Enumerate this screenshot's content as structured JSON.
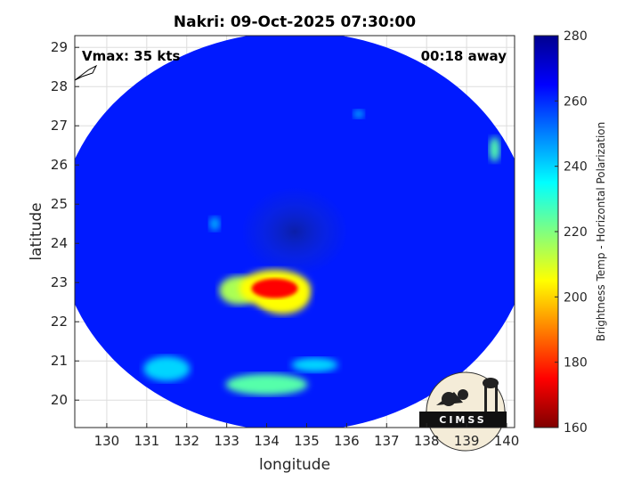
{
  "chart_data": {
    "type": "heatmap",
    "title": "Nakri: 09-Oct-2025 07:30:00",
    "xlabel": "longitude",
    "ylabel": "latitude",
    "xlim": [
      129.2,
      140.2
    ],
    "ylim": [
      19.3,
      29.3
    ],
    "xticks": [
      130,
      131,
      132,
      133,
      134,
      135,
      136,
      137,
      138,
      139,
      140
    ],
    "yticks": [
      20,
      21,
      22,
      23,
      24,
      25,
      26,
      27,
      28,
      29
    ],
    "grid": true,
    "annotations": {
      "vmax": "Vmax: 35 kts",
      "away": "00:18 away"
    },
    "colorbar": {
      "label": "Brightness Temp - Horizontal Polarization",
      "min": 160,
      "max": 280,
      "ticks": [
        160,
        180,
        200,
        220,
        240,
        260,
        280
      ],
      "colors": [
        "#7f0000",
        "#ff0000",
        "#ff8000",
        "#ffff00",
        "#80ff80",
        "#00ffff",
        "#0080ff",
        "#0000ff",
        "#00008f"
      ]
    },
    "swath": {
      "center_lon": 134.7,
      "center_lat": 24.3,
      "radius_lon": 5.9,
      "radius_lat": 5.1,
      "background_value": 262
    },
    "features": [
      {
        "name": "eye",
        "lon": 134.7,
        "lat": 24.3,
        "value": 270
      },
      {
        "name": "deep-convection-core",
        "lon": 134.2,
        "lat": 22.85,
        "value": 175
      },
      {
        "name": "convection-south-1",
        "lon": 133.3,
        "lat": 22.8,
        "value": 215
      },
      {
        "name": "convection-south-2",
        "lon": 134.4,
        "lat": 22.65,
        "value": 205
      },
      {
        "name": "rainband-southwest",
        "lon": 131.5,
        "lat": 20.8,
        "value": 240
      },
      {
        "name": "rainband-south",
        "lon": 134.0,
        "lat": 20.4,
        "value": 225
      },
      {
        "name": "rainband-south-2",
        "lon": 135.2,
        "lat": 20.9,
        "value": 240
      },
      {
        "name": "cell-northeast",
        "lon": 139.7,
        "lat": 26.4,
        "value": 225
      },
      {
        "name": "cell-north",
        "lon": 136.3,
        "lat": 27.3,
        "value": 245
      },
      {
        "name": "cell-west",
        "lon": 132.7,
        "lat": 24.5,
        "value": 245
      }
    ],
    "logo": "CIMSS"
  }
}
